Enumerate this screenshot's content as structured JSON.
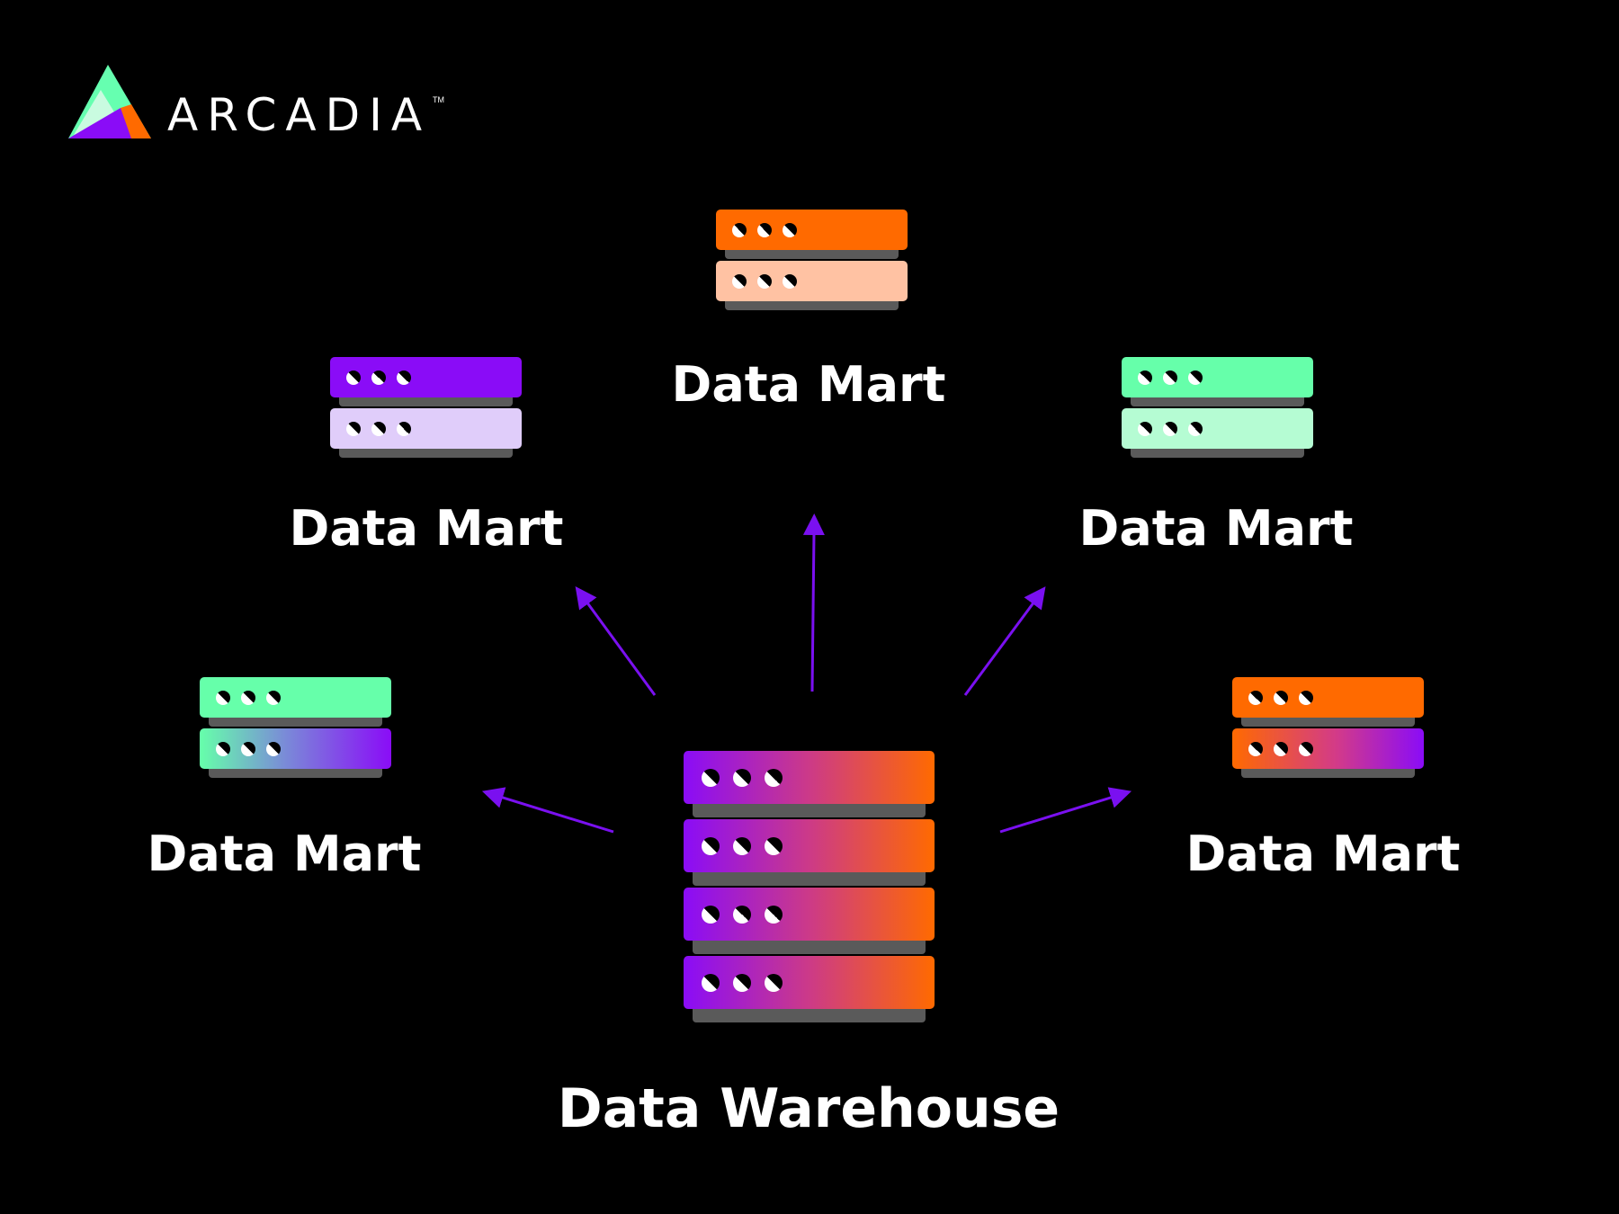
{
  "logo": {
    "name": "ARCADIA",
    "tm": "TM",
    "colors": [
      "#66ffb0",
      "#8a0cf7",
      "#ff6a00",
      "#c9fbe0"
    ]
  },
  "arrow_color": "#7a10f0",
  "warehouse": {
    "label": "Data Warehouse",
    "gradient": [
      "#8a0cf7",
      "#cc3a88",
      "#ff6a00"
    ]
  },
  "marts": [
    {
      "id": "top",
      "label": "Data Mart",
      "top_color": "#ff6a00",
      "bottom_color": "#ffc2a3"
    },
    {
      "id": "upper-left",
      "label": "Data Mart",
      "top_color": "#8a0cf7",
      "bottom_color": "#e0cdfa"
    },
    {
      "id": "upper-right",
      "label": "Data Mart",
      "top_color": "#66ffaa",
      "bottom_color": "#b5fcd3"
    },
    {
      "id": "lower-left",
      "label": "Data Mart",
      "top_color": "#66ffaa",
      "bottom_color": "linear-gradient(90deg,#66ffaa,#7a8ad8 45%,#8a0cf7)"
    },
    {
      "id": "lower-right",
      "label": "Data Mart",
      "top_color": "#ff6a00",
      "bottom_color": "linear-gradient(90deg,#ff6a00,#d23a8a 55%,#8a0cf7)"
    }
  ]
}
